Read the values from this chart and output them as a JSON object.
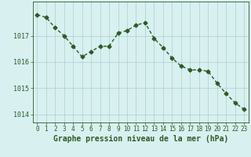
{
  "hours": [
    0,
    1,
    2,
    3,
    4,
    5,
    6,
    7,
    8,
    9,
    10,
    11,
    12,
    13,
    14,
    15,
    16,
    17,
    18,
    19,
    20,
    21,
    22,
    23
  ],
  "pressure": [
    1017.8,
    1017.7,
    1017.3,
    1017.0,
    1016.6,
    1016.2,
    1016.4,
    1016.6,
    1016.6,
    1017.1,
    1017.2,
    1017.4,
    1017.5,
    1016.9,
    1016.55,
    1016.15,
    1015.85,
    1015.7,
    1015.7,
    1015.65,
    1015.2,
    1014.8,
    1014.45,
    1014.2
  ],
  "line_color": "#2d5a27",
  "marker": "D",
  "markersize": 2.5,
  "linewidth": 1.0,
  "bg_color": "#d8f0f0",
  "plot_bg_color": "#d8f0f0",
  "grid_color": "#aecece",
  "tick_color": "#2d5a27",
  "label_color": "#2d5a27",
  "xlabel": "Graphe pression niveau de la mer (hPa)",
  "xlabel_fontsize": 7,
  "ylabel_ticks": [
    1014,
    1015,
    1016,
    1017
  ],
  "ylim": [
    1013.7,
    1018.3
  ],
  "xlim": [
    -0.5,
    23.5
  ],
  "xticks": [
    0,
    1,
    2,
    3,
    4,
    5,
    6,
    7,
    8,
    9,
    10,
    11,
    12,
    13,
    14,
    15,
    16,
    17,
    18,
    19,
    20,
    21,
    22,
    23
  ],
  "tick_fontsize": 5.5,
  "ytick_fontsize": 6
}
